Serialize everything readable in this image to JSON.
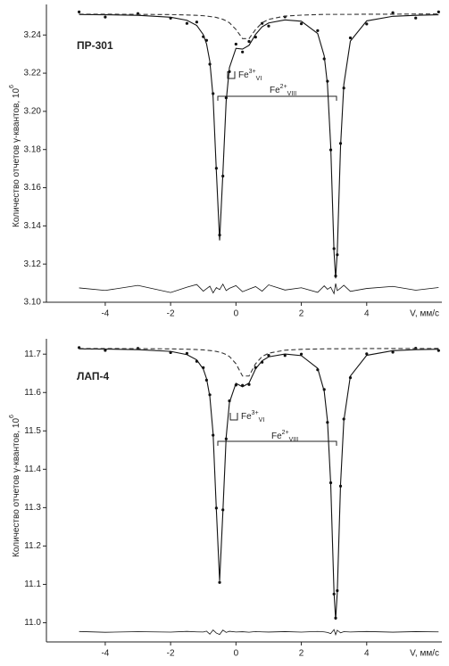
{
  "chart_data": [
    {
      "type": "line",
      "label": "ПР-301",
      "ylabel": "Количество отчетов γ-квантов, 10",
      "ylabel_sup": "6",
      "xlabel": "V, мм/с",
      "xlim": [
        -5.8,
        6.3
      ],
      "xticks": [
        -4,
        -2,
        0,
        2,
        4
      ],
      "ylim": [
        3.1,
        3.256
      ],
      "yticks": [
        {
          "value": 3.1,
          "label": "3.10"
        },
        3.12,
        3.14,
        3.16,
        3.18,
        {
          "value": 3.2,
          "label": "3.20"
        },
        3.22,
        3.24
      ],
      "annotations": [
        {
          "text": "Fe",
          "sup": "3+",
          "sub": "VI"
        },
        {
          "text": "Fe",
          "sup": "2+",
          "sub": "VIII"
        }
      ],
      "x": [
        -4.8,
        -4,
        -3,
        -2,
        -1.5,
        -1.2,
        -1,
        -0.9,
        -0.8,
        -0.7,
        -0.6,
        -0.5,
        -0.4,
        -0.3,
        -0.2,
        0,
        0.2,
        0.4,
        0.6,
        0.8,
        1,
        1.5,
        2,
        2.5,
        2.7,
        2.8,
        2.9,
        3.0,
        3.05,
        3.1,
        3.2,
        3.3,
        3.5,
        4,
        4.8,
        5.5,
        6.2
      ],
      "series": [
        {
          "style": "points",
          "color": "#111",
          "values": [
            3.2521,
            3.2494,
            3.2512,
            3.2488,
            3.2461,
            3.2468,
            3.2391,
            3.2372,
            3.2247,
            3.2093,
            3.1702,
            3.1352,
            3.1661,
            3.2071,
            3.2208,
            3.2352,
            3.2311,
            3.2366,
            3.2389,
            3.2461,
            3.2447,
            3.2495,
            3.2459,
            3.2423,
            3.2275,
            3.2158,
            3.1798,
            3.1281,
            3.1138,
            3.1249,
            3.1832,
            3.2122,
            3.2385,
            3.2458,
            3.2517,
            3.2489,
            3.2521
          ]
        },
        {
          "style": "solid",
          "color": "#111",
          "values": [
            3.2507,
            3.2506,
            3.2503,
            3.2493,
            3.2477,
            3.245,
            3.2402,
            3.2353,
            3.2262,
            3.2074,
            3.1686,
            3.1324,
            3.1676,
            3.2053,
            3.2229,
            3.233,
            3.2326,
            3.2346,
            3.2403,
            3.2443,
            3.2463,
            3.2479,
            3.2472,
            3.2408,
            3.2291,
            3.214,
            3.1815,
            3.1265,
            3.1125,
            3.1265,
            3.1815,
            3.214,
            3.2368,
            3.2474,
            3.2498,
            3.2503,
            3.2506
          ]
        },
        {
          "style": "dashed",
          "color": "#333",
          "values": [
            3.2509,
            3.2509,
            3.2508,
            3.2507,
            3.2505,
            3.2503,
            3.2501,
            3.2499,
            3.2497,
            3.2495,
            3.2492,
            3.2487,
            3.2482,
            3.2474,
            3.2464,
            3.2429,
            3.2381,
            3.2381,
            3.2429,
            3.2464,
            3.2482,
            3.2499,
            3.2504,
            3.2507,
            3.2508,
            3.2508,
            3.2508,
            3.2508,
            3.2508,
            3.2508,
            3.2508,
            3.2508,
            3.2508,
            3.2509,
            3.2509,
            3.251,
            3.251
          ]
        },
        {
          "style": "thin",
          "color": "#111",
          "values": [
            3.1075,
            3.1062,
            3.1088,
            3.1051,
            3.1079,
            3.1093,
            3.1058,
            3.1071,
            3.1084,
            3.1049,
            3.1077,
            3.1066,
            3.1095,
            3.1061,
            3.1073,
            3.1087,
            3.1055,
            3.1069,
            3.1082,
            3.1058,
            3.1091,
            3.1064,
            3.1076,
            3.1052,
            3.1086,
            3.1068,
            3.1079,
            3.1045,
            3.1098,
            3.1061,
            3.1074,
            3.1089,
            3.1057,
            3.1072,
            3.1083,
            3.1063,
            3.1077
          ]
        }
      ]
    },
    {
      "type": "line",
      "label": "ЛАП-4",
      "ylabel": "Количество отчетов γ-квантов, 10",
      "ylabel_sup": "6",
      "xlabel": "V, мм/с",
      "xlim": [
        -5.8,
        6.3
      ],
      "xticks": [
        -4,
        -2,
        0,
        2,
        4
      ],
      "ylim": [
        10.95,
        11.74
      ],
      "yticks": [
        {
          "value": 11,
          "label": "11.0"
        },
        11.1,
        11.2,
        11.3,
        11.4,
        11.5,
        11.6,
        11.7
      ],
      "annotations": [
        {
          "text": "Fe",
          "sup": "3+",
          "sub": "VI"
        },
        {
          "text": "Fe",
          "sup": "2+",
          "sub": "VIII"
        }
      ],
      "x": [
        -4.8,
        -4,
        -3,
        -2,
        -1.5,
        -1.2,
        -1,
        -0.9,
        -0.8,
        -0.7,
        -0.6,
        -0.5,
        -0.4,
        -0.3,
        -0.2,
        0,
        0.2,
        0.4,
        0.6,
        0.8,
        1,
        1.5,
        2,
        2.5,
        2.7,
        2.8,
        2.9,
        3.0,
        3.05,
        3.1,
        3.2,
        3.3,
        3.5,
        4,
        4.8,
        5.5,
        6.2
      ],
      "series": [
        {
          "style": "points",
          "color": "#111",
          "values": [
            11.7171,
            11.7098,
            11.7152,
            11.7041,
            11.7019,
            11.6812,
            11.6648,
            11.6322,
            11.5941,
            11.4887,
            11.2989,
            11.1051,
            11.2942,
            11.4791,
            11.5783,
            11.6195,
            11.6187,
            11.6209,
            11.6652,
            11.6789,
            11.6968,
            11.6963,
            11.7001,
            11.6594,
            11.6079,
            11.5221,
            11.3648,
            11.0748,
            11.0121,
            11.0836,
            11.3561,
            11.5309,
            11.6387,
            11.7008,
            11.7051,
            11.7153,
            11.7094
          ]
        },
        {
          "style": "solid",
          "color": "#111",
          "values": [
            11.7137,
            11.7132,
            11.7117,
            11.7072,
            11.6988,
            11.685,
            11.661,
            11.6361,
            11.5896,
            11.4932,
            11.2941,
            11.1092,
            11.2897,
            11.4836,
            11.5738,
            11.6241,
            11.6149,
            11.6248,
            11.6614,
            11.6828,
            11.6929,
            11.7004,
            11.6962,
            11.6632,
            11.6034,
            11.5264,
            11.3603,
            11.079,
            11.008,
            11.079,
            11.3603,
            11.5264,
            11.6428,
            11.6969,
            11.709,
            11.7118,
            11.7128
          ]
        },
        {
          "style": "dashed",
          "color": "#333",
          "values": [
            11.7147,
            11.7146,
            11.7143,
            11.7137,
            11.7128,
            11.7119,
            11.711,
            11.7103,
            11.7094,
            11.7084,
            11.707,
            11.7051,
            11.7026,
            11.699,
            11.6938,
            11.675,
            11.643,
            11.643,
            11.675,
            11.6938,
            11.7026,
            11.7103,
            11.7126,
            11.7135,
            11.7138,
            11.7139,
            11.7139,
            11.714,
            11.714,
            11.714,
            11.7141,
            11.7141,
            11.7143,
            11.7145,
            11.7146,
            11.7147,
            11.7148
          ]
        },
        {
          "style": "thin",
          "color": "#111",
          "values": [
            10.9772,
            10.9751,
            10.9768,
            10.9756,
            10.9774,
            10.9762,
            10.9758,
            10.9781,
            10.9702,
            10.9812,
            10.9731,
            10.9695,
            10.9809,
            10.9748,
            10.9777,
            10.9759,
            10.9766,
            10.9753,
            10.9771,
            10.9762,
            10.9757,
            10.9769,
            10.9755,
            10.9773,
            10.9761,
            10.9747,
            10.9718,
            10.9821,
            10.9689,
            10.9805,
            10.9738,
            10.9767,
            10.9758,
            10.9772,
            10.9754,
            10.9769,
            10.9762
          ]
        }
      ]
    }
  ]
}
